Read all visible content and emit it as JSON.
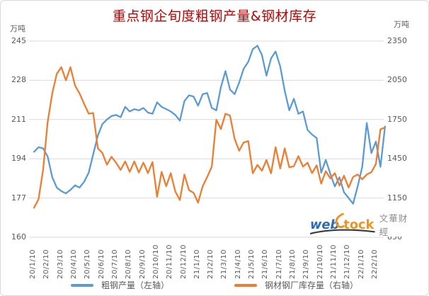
{
  "title": "重点钢企旬度粗钢产量&钢材库存",
  "left_axis": {
    "unit": "万吨",
    "ticks": [
      245,
      228,
      211,
      194,
      177,
      160
    ],
    "min": 160,
    "max": 245
  },
  "right_axis": {
    "unit": "万吨",
    "ticks": [
      2350,
      2050,
      1750,
      1450,
      1150,
      850
    ],
    "min": 850,
    "max": 2350
  },
  "legend": {
    "production_label": "粗钢产量（左轴）",
    "inventory_label": "钢材钢厂库存量（右轴）"
  },
  "watermark": {
    "web": "web",
    "tock": "tock",
    "brand": "文華财經"
  },
  "colors": {
    "title": "#C00000",
    "axis_text": "#595959",
    "gridline": "#D9D9D9",
    "production_blue": "#5B9BD5",
    "inventory_orange": "#ED7D31",
    "logo_blue": "#2B6CB8",
    "logo_orange": "#F0931F",
    "logo_swoosh_dark": "#3A3A3A",
    "brand_gray": "#8C8C8C"
  },
  "chart_data": {
    "type": "line",
    "title": "重点钢企旬度粗钢产量&钢材库存",
    "x_tick_labels": [
      "20/1/10",
      "20/2/10",
      "20/3/10",
      "20/4/10",
      "20/5/10",
      "20/6/10",
      "20/7/10",
      "20/8/10",
      "20/9/10",
      "20/10/10",
      "20/11/10",
      "20/12/10",
      "21/1/10",
      "21/2/10",
      "21/3/10",
      "21/4/10",
      "21/5/10",
      "21/6/10",
      "21/7/10",
      "21/8/10",
      "21/9/10",
      "21/10/10",
      "21/11/10",
      "21/12/10",
      "22/1/10",
      "22/2/10"
    ],
    "points_per_label": 3,
    "grid": "horizontal",
    "legend_position": "bottom",
    "left_ylabel": "万吨",
    "right_ylabel": "万吨",
    "left_ylim": [
      160,
      245
    ],
    "right_ylim": [
      850,
      2350
    ],
    "series": [
      {
        "name": "粗钢产量（左轴）",
        "axis": "left",
        "color": "#5B9BD5",
        "values": [
          197,
          199,
          198.5,
          195,
          186,
          181.5,
          180,
          179,
          180.5,
          182.5,
          181.5,
          184,
          188,
          196,
          204,
          209,
          211,
          212.5,
          213,
          212,
          216.5,
          214.5,
          215.5,
          215,
          216,
          214,
          213.5,
          218.5,
          216.5,
          215.5,
          214.5,
          213,
          210.5,
          219,
          221.5,
          221,
          217,
          222,
          222.5,
          216,
          215,
          225,
          232,
          224,
          222,
          227,
          233,
          236,
          241.5,
          243,
          239,
          230,
          237.5,
          240.5,
          234,
          223.5,
          215,
          220,
          213.5,
          214.5,
          206.5,
          204.5,
          203,
          188,
          193.5,
          187.5,
          182,
          186,
          179.5,
          177,
          174.5,
          182,
          190.5,
          209.5,
          196.5,
          201.5,
          190.5,
          208
        ]
      },
      {
        "name": "钢材钢厂库存量（右轴）",
        "axis": "right",
        "color": "#ED7D31",
        "values": [
          1075,
          1140,
          1365,
          1730,
          1950,
          2100,
          2150,
          2050,
          2150,
          2010,
          1950,
          1870,
          1795,
          1800,
          1530,
          1495,
          1405,
          1465,
          1420,
          1365,
          1430,
          1350,
          1430,
          1345,
          1420,
          1340,
          1425,
          1160,
          1350,
          1240,
          1340,
          1200,
          1135,
          1330,
          1210,
          1190,
          1115,
          1240,
          1311,
          1390,
          1749,
          1677,
          1795,
          1780,
          1604,
          1512,
          1575,
          1585,
          1339,
          1403,
          1359,
          1440,
          1339,
          1538,
          1376,
          1529,
          1385,
          1393,
          1470,
          1390,
          1420,
          1340,
          1400,
          1260,
          1355,
          1300,
          1340,
          1245,
          1320,
          1230,
          1311,
          1330,
          1293,
          1330,
          1347,
          1410,
          1675,
          1690
        ]
      }
    ]
  }
}
